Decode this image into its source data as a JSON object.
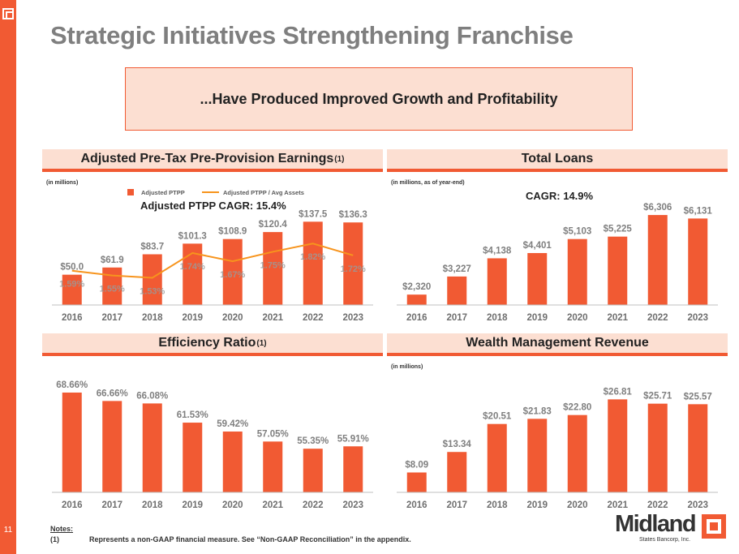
{
  "page": {
    "title": "Strategic Initiatives Strengthening Franchise",
    "banner": "...Have Produced Improved Growth and Profitability",
    "page_number": "11",
    "notes": {
      "title": "Notes:",
      "items": [
        {
          "num": "(1)",
          "text": "Represents a non-GAAP financial measure. See “Non-GAAP Reconciliation” in the appendix."
        }
      ]
    },
    "brand": {
      "name": "Midland",
      "sub": "States Bancorp, Inc."
    },
    "colors": {
      "accent": "#f15a33",
      "header_bg": "#fcdfd2",
      "line": "#f7941d",
      "label": "#7f7f7f"
    }
  },
  "chart_data": [
    {
      "id": "ptpp",
      "type": "bar",
      "title": "Adjusted Pre-Tax Pre-Provision Earnings",
      "title_sup": "(1)",
      "unit_note": "(in millions)",
      "annotation": "Adjusted PTPP CAGR: 15.4%",
      "categories": [
        "2016",
        "2017",
        "2018",
        "2019",
        "2020",
        "2021",
        "2022",
        "2023"
      ],
      "series": [
        {
          "name": "Adjusted PTPP",
          "kind": "bar",
          "values": [
            50.0,
            61.9,
            83.7,
            101.3,
            108.9,
            120.4,
            137.5,
            136.3
          ],
          "labels": [
            "$50.0",
            "$61.9",
            "$83.7",
            "$101.3",
            "$108.9",
            "$120.4",
            "$137.5",
            "$136.3"
          ]
        },
        {
          "name": "Adjusted PTPP / Avg Assets",
          "kind": "line",
          "values": [
            1.59,
            1.55,
            1.53,
            1.74,
            1.67,
            1.75,
            1.82,
            1.72
          ],
          "labels": [
            "1.59%",
            "1.55%",
            "1.53%",
            "1.74%",
            "1.67%",
            "1.75%",
            "1.82%",
            "1.72%"
          ]
        }
      ],
      "legend": [
        "Adjusted PTPP",
        "Adjusted PTPP / Avg Assets"
      ],
      "legend_position": "top",
      "ylim": [
        0,
        150
      ],
      "y2lim": [
        1.3,
        2.0
      ],
      "grid": false
    },
    {
      "id": "loans",
      "type": "bar",
      "title": "Total Loans",
      "unit_note": "(in millions, as of year-end)",
      "annotation": "CAGR: 14.9%",
      "categories": [
        "2016",
        "2017",
        "2018",
        "2019",
        "2020",
        "2021",
        "2022",
        "2023"
      ],
      "values": [
        2320,
        3227,
        4138,
        4401,
        5103,
        5225,
        6306,
        6131
      ],
      "labels": [
        "$2,320",
        "$3,227",
        "$4,138",
        "$4,401",
        "$5,103",
        "$5,225",
        "$6,306",
        "$6,131"
      ],
      "ylim": [
        1800,
        7000
      ],
      "grid": false
    },
    {
      "id": "efficiency",
      "type": "bar",
      "title": "Efficiency Ratio",
      "title_sup": "(1)",
      "categories": [
        "2016",
        "2017",
        "2018",
        "2019",
        "2020",
        "2021",
        "2022",
        "2023"
      ],
      "values": [
        68.66,
        66.66,
        66.08,
        61.53,
        59.42,
        57.05,
        55.35,
        55.91
      ],
      "labels": [
        "68.66%",
        "66.66%",
        "66.08%",
        "61.53%",
        "59.42%",
        "57.05%",
        "55.35%",
        "55.91%"
      ],
      "ylim": [
        45,
        70
      ],
      "grid": false
    },
    {
      "id": "wealth",
      "type": "bar",
      "title": "Wealth Management Revenue",
      "unit_note": "(in millions)",
      "categories": [
        "2016",
        "2017",
        "2018",
        "2019",
        "2020",
        "2021",
        "2022",
        "2023"
      ],
      "values": [
        8.09,
        13.34,
        20.51,
        21.83,
        22.8,
        26.81,
        25.71,
        25.57
      ],
      "labels": [
        "$8.09",
        "$13.34",
        "$20.51",
        "$21.83",
        "$22.80",
        "$26.81",
        "$25.71",
        "$25.57"
      ],
      "ylim": [
        3,
        30
      ],
      "grid": false
    }
  ]
}
